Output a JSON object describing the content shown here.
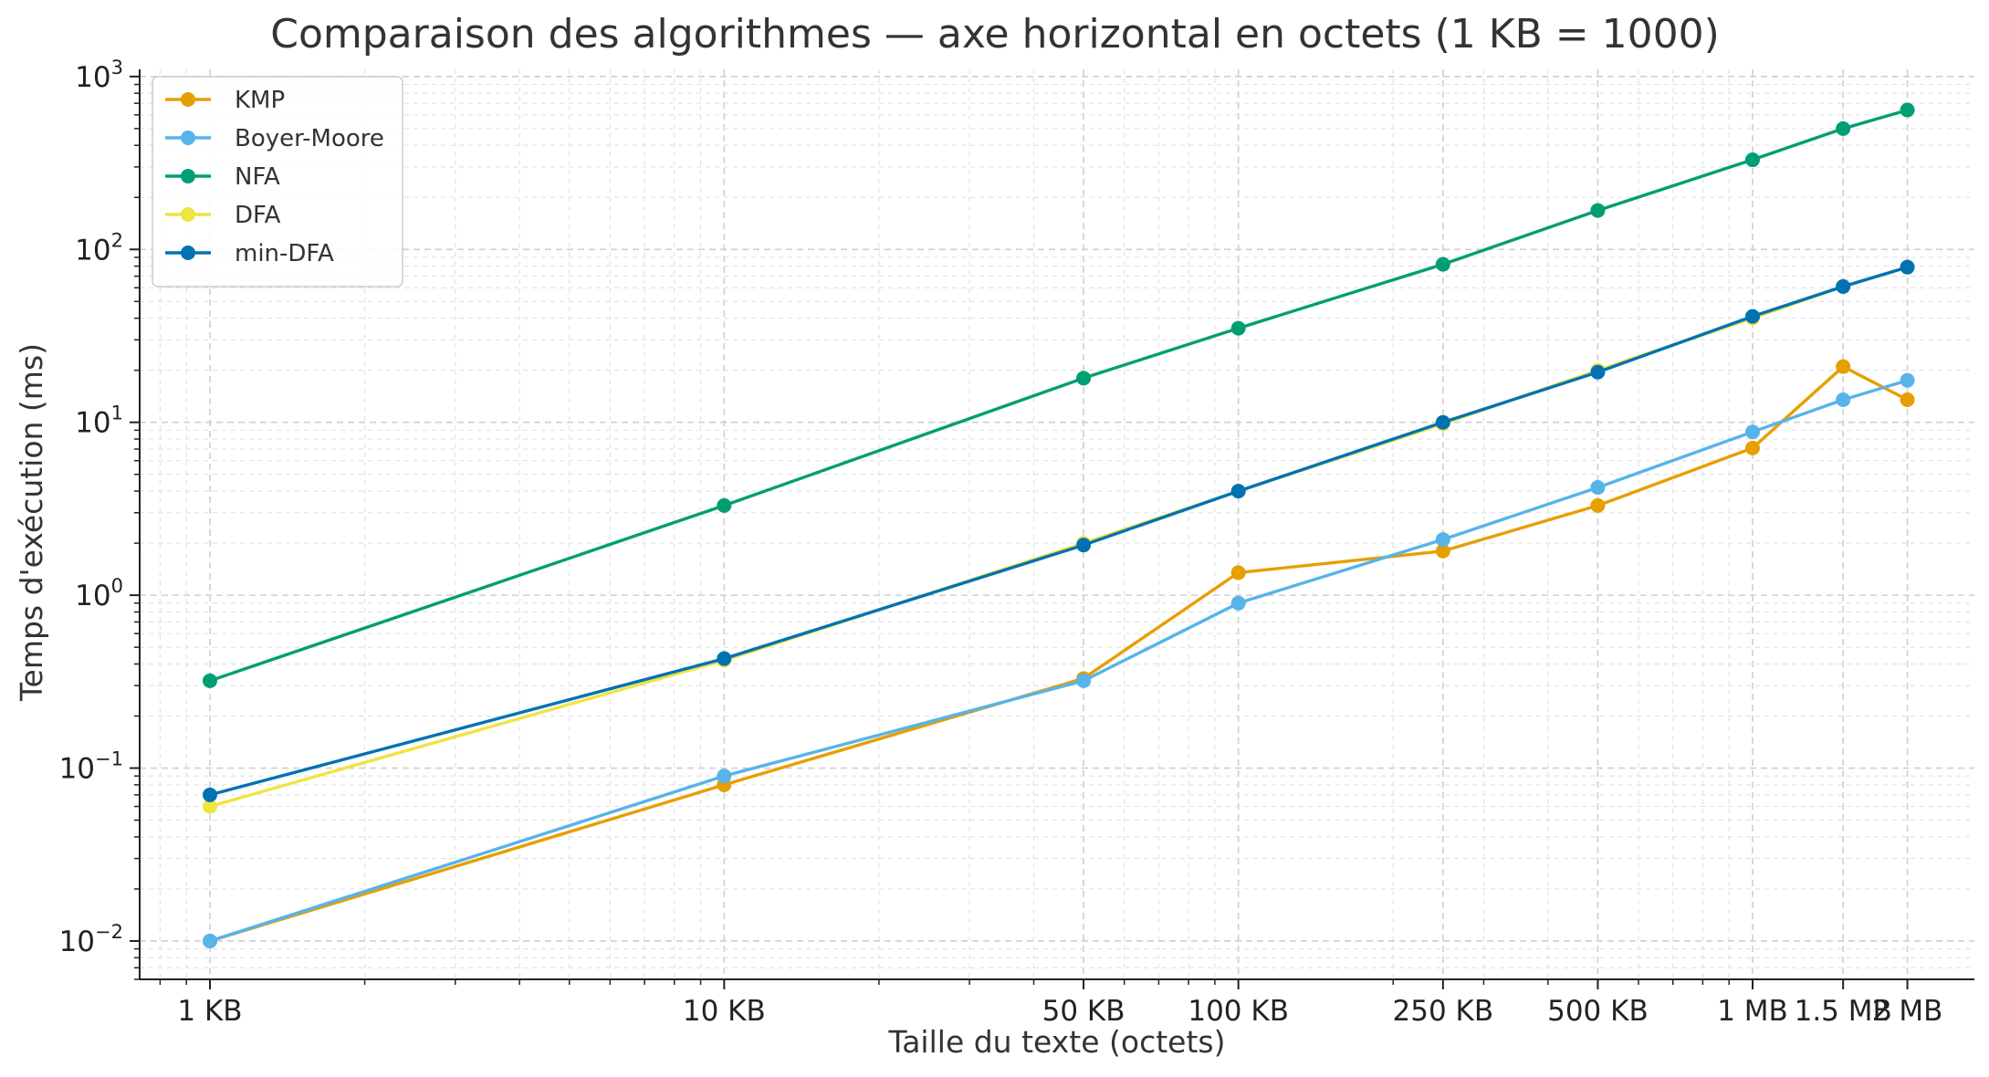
{
  "chart_data": {
    "type": "line",
    "title": "Comparaison des algorithmes — axe horizontal en octets (1 KB = 1000)",
    "xlabel": "Taille du texte (octets)",
    "ylabel": "Temps d'exécution (ms)",
    "x_scale": "log",
    "y_scale": "log",
    "xlim": [
      730,
      2700000
    ],
    "ylim": [
      0.006,
      1100
    ],
    "grid": true,
    "legend_position": "top-left",
    "x": [
      1000,
      10000,
      50000,
      100000,
      250000,
      500000,
      1000000,
      1500000,
      2000000
    ],
    "x_tick_labels": [
      "1 KB",
      "10 KB",
      "50 KB",
      "100 KB",
      "250 KB",
      "500 KB",
      "1 MB",
      "1.5 MB",
      "2 MB"
    ],
    "y_ticks": [
      {
        "value": 0.01,
        "base": "10",
        "exp": "−2"
      },
      {
        "value": 0.1,
        "base": "10",
        "exp": "−1"
      },
      {
        "value": 1,
        "base": "10",
        "exp": "0"
      },
      {
        "value": 10,
        "base": "10",
        "exp": "1"
      },
      {
        "value": 100,
        "base": "10",
        "exp": "2"
      },
      {
        "value": 1000,
        "base": "10",
        "exp": "3"
      }
    ],
    "series": [
      {
        "name": "KMP",
        "color": "#E69F00",
        "values": [
          0.01,
          0.08,
          0.33,
          1.35,
          1.8,
          3.3,
          7.1,
          21,
          13.5
        ]
      },
      {
        "name": "Boyer-Moore",
        "color": "#56B4E9",
        "values": [
          0.01,
          0.09,
          0.32,
          0.9,
          2.1,
          4.2,
          8.8,
          13.5,
          17.5
        ]
      },
      {
        "name": "NFA",
        "color": "#009E73",
        "values": [
          0.32,
          3.3,
          18,
          35,
          82,
          168,
          330,
          500,
          640
        ]
      },
      {
        "name": "DFA",
        "color": "#F0E442",
        "values": [
          0.06,
          0.42,
          2.0,
          4.0,
          9.8,
          20,
          40,
          61,
          79
        ]
      },
      {
        "name": "min-DFA",
        "color": "#0072B2",
        "values": [
          0.07,
          0.43,
          1.95,
          4.0,
          10,
          19.5,
          41,
          61,
          79
        ]
      }
    ]
  }
}
